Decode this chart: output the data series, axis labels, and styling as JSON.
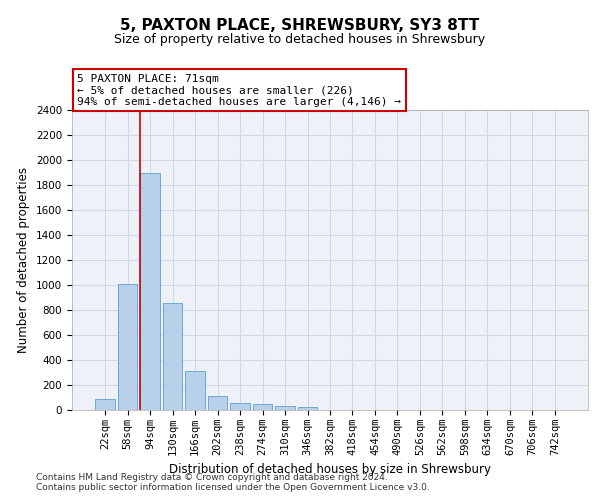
{
  "title": "5, PAXTON PLACE, SHREWSBURY, SY3 8TT",
  "subtitle": "Size of property relative to detached houses in Shrewsbury",
  "xlabel": "Distribution of detached houses by size in Shrewsbury",
  "ylabel": "Number of detached properties",
  "categories": [
    "22sqm",
    "58sqm",
    "94sqm",
    "130sqm",
    "166sqm",
    "202sqm",
    "238sqm",
    "274sqm",
    "310sqm",
    "346sqm",
    "382sqm",
    "418sqm",
    "454sqm",
    "490sqm",
    "526sqm",
    "562sqm",
    "598sqm",
    "634sqm",
    "670sqm",
    "706sqm",
    "742sqm"
  ],
  "values": [
    90,
    1010,
    1900,
    860,
    315,
    115,
    60,
    50,
    35,
    25,
    0,
    0,
    0,
    0,
    0,
    0,
    0,
    0,
    0,
    0,
    0
  ],
  "bar_color": "#b8d0ea",
  "bar_edge_color": "#6aaad4",
  "grid_color": "#d0d8e8",
  "background_color": "#eef2f8",
  "annotation_text": "5 PAXTON PLACE: 71sqm\n← 5% of detached houses are smaller (226)\n94% of semi-detached houses are larger (4,146) →",
  "annotation_box_color": "#ffffff",
  "annotation_box_edge_color": "#cc0000",
  "ylim": [
    0,
    2400
  ],
  "yticks": [
    0,
    200,
    400,
    600,
    800,
    1000,
    1200,
    1400,
    1600,
    1800,
    2000,
    2200,
    2400
  ],
  "red_line_index": 1.57,
  "footer1": "Contains HM Land Registry data © Crown copyright and database right 2024.",
  "footer2": "Contains public sector information licensed under the Open Government Licence v3.0.",
  "title_fontsize": 11,
  "subtitle_fontsize": 9,
  "axis_label_fontsize": 8.5,
  "tick_fontsize": 7.5,
  "annotation_fontsize": 8
}
